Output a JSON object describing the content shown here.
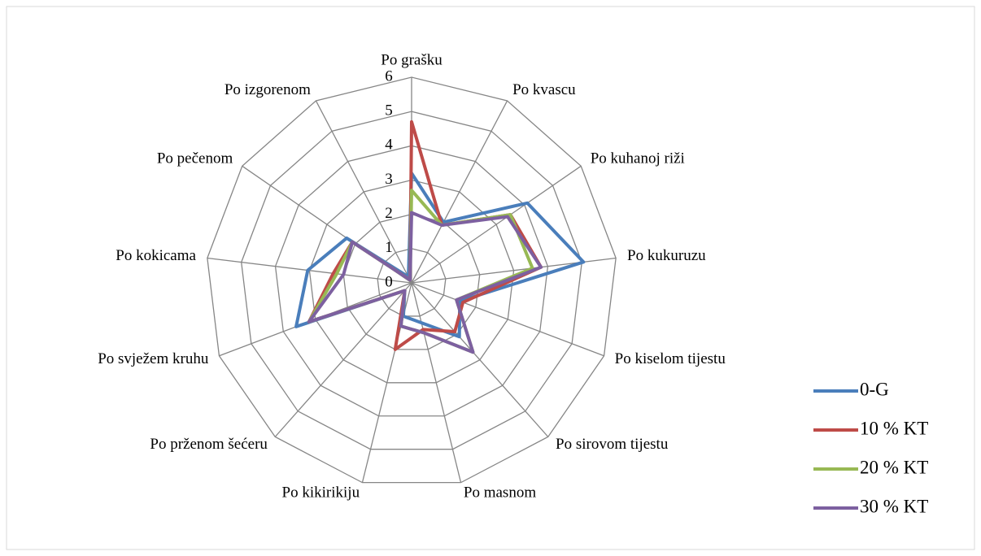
{
  "chart_data": {
    "type": "radar",
    "categories": [
      "Po grašku",
      "Po kvascu",
      "Po kuhanoj riži",
      "Po kukuruzu",
      "Po kiselom tijestu",
      "Po sirovom tijestu",
      "Po masnom",
      "Po kikirikiju",
      "Po prženom šećeru",
      "Po svježem kruhu",
      "Po kokicama",
      "Po pečenom",
      "Po izgorenom"
    ],
    "series": [
      {
        "name": "0-G",
        "color": "#4a7ebb",
        "values": [
          3.2,
          2.0,
          4.1,
          5.05,
          1.5,
          2.1,
          1.2,
          1.0,
          0.3,
          3.6,
          3.05,
          2.3,
          0.2
        ]
      },
      {
        "name": "10 % KT",
        "color": "#be4b48",
        "values": [
          4.7,
          1.9,
          3.5,
          3.8,
          1.6,
          1.9,
          1.4,
          2.0,
          0.3,
          3.2,
          2.3,
          2.1,
          0.1
        ]
      },
      {
        "name": "20 % KT",
        "color": "#98b954",
        "values": [
          2.7,
          1.9,
          3.5,
          3.55,
          1.4,
          2.7,
          1.5,
          1.3,
          0.3,
          3.2,
          2.2,
          2.1,
          0.1
        ]
      },
      {
        "name": "30 % KT",
        "color": "#7d60a0",
        "values": [
          2.05,
          1.9,
          3.4,
          3.8,
          1.4,
          2.7,
          1.5,
          1.3,
          0.3,
          3.2,
          2.0,
          2.1,
          0.1
        ]
      }
    ],
    "ylim": [
      0,
      6
    ],
    "yticks": [
      0,
      1,
      2,
      3,
      4,
      5,
      6
    ],
    "grid": true,
    "legend": "right"
  }
}
